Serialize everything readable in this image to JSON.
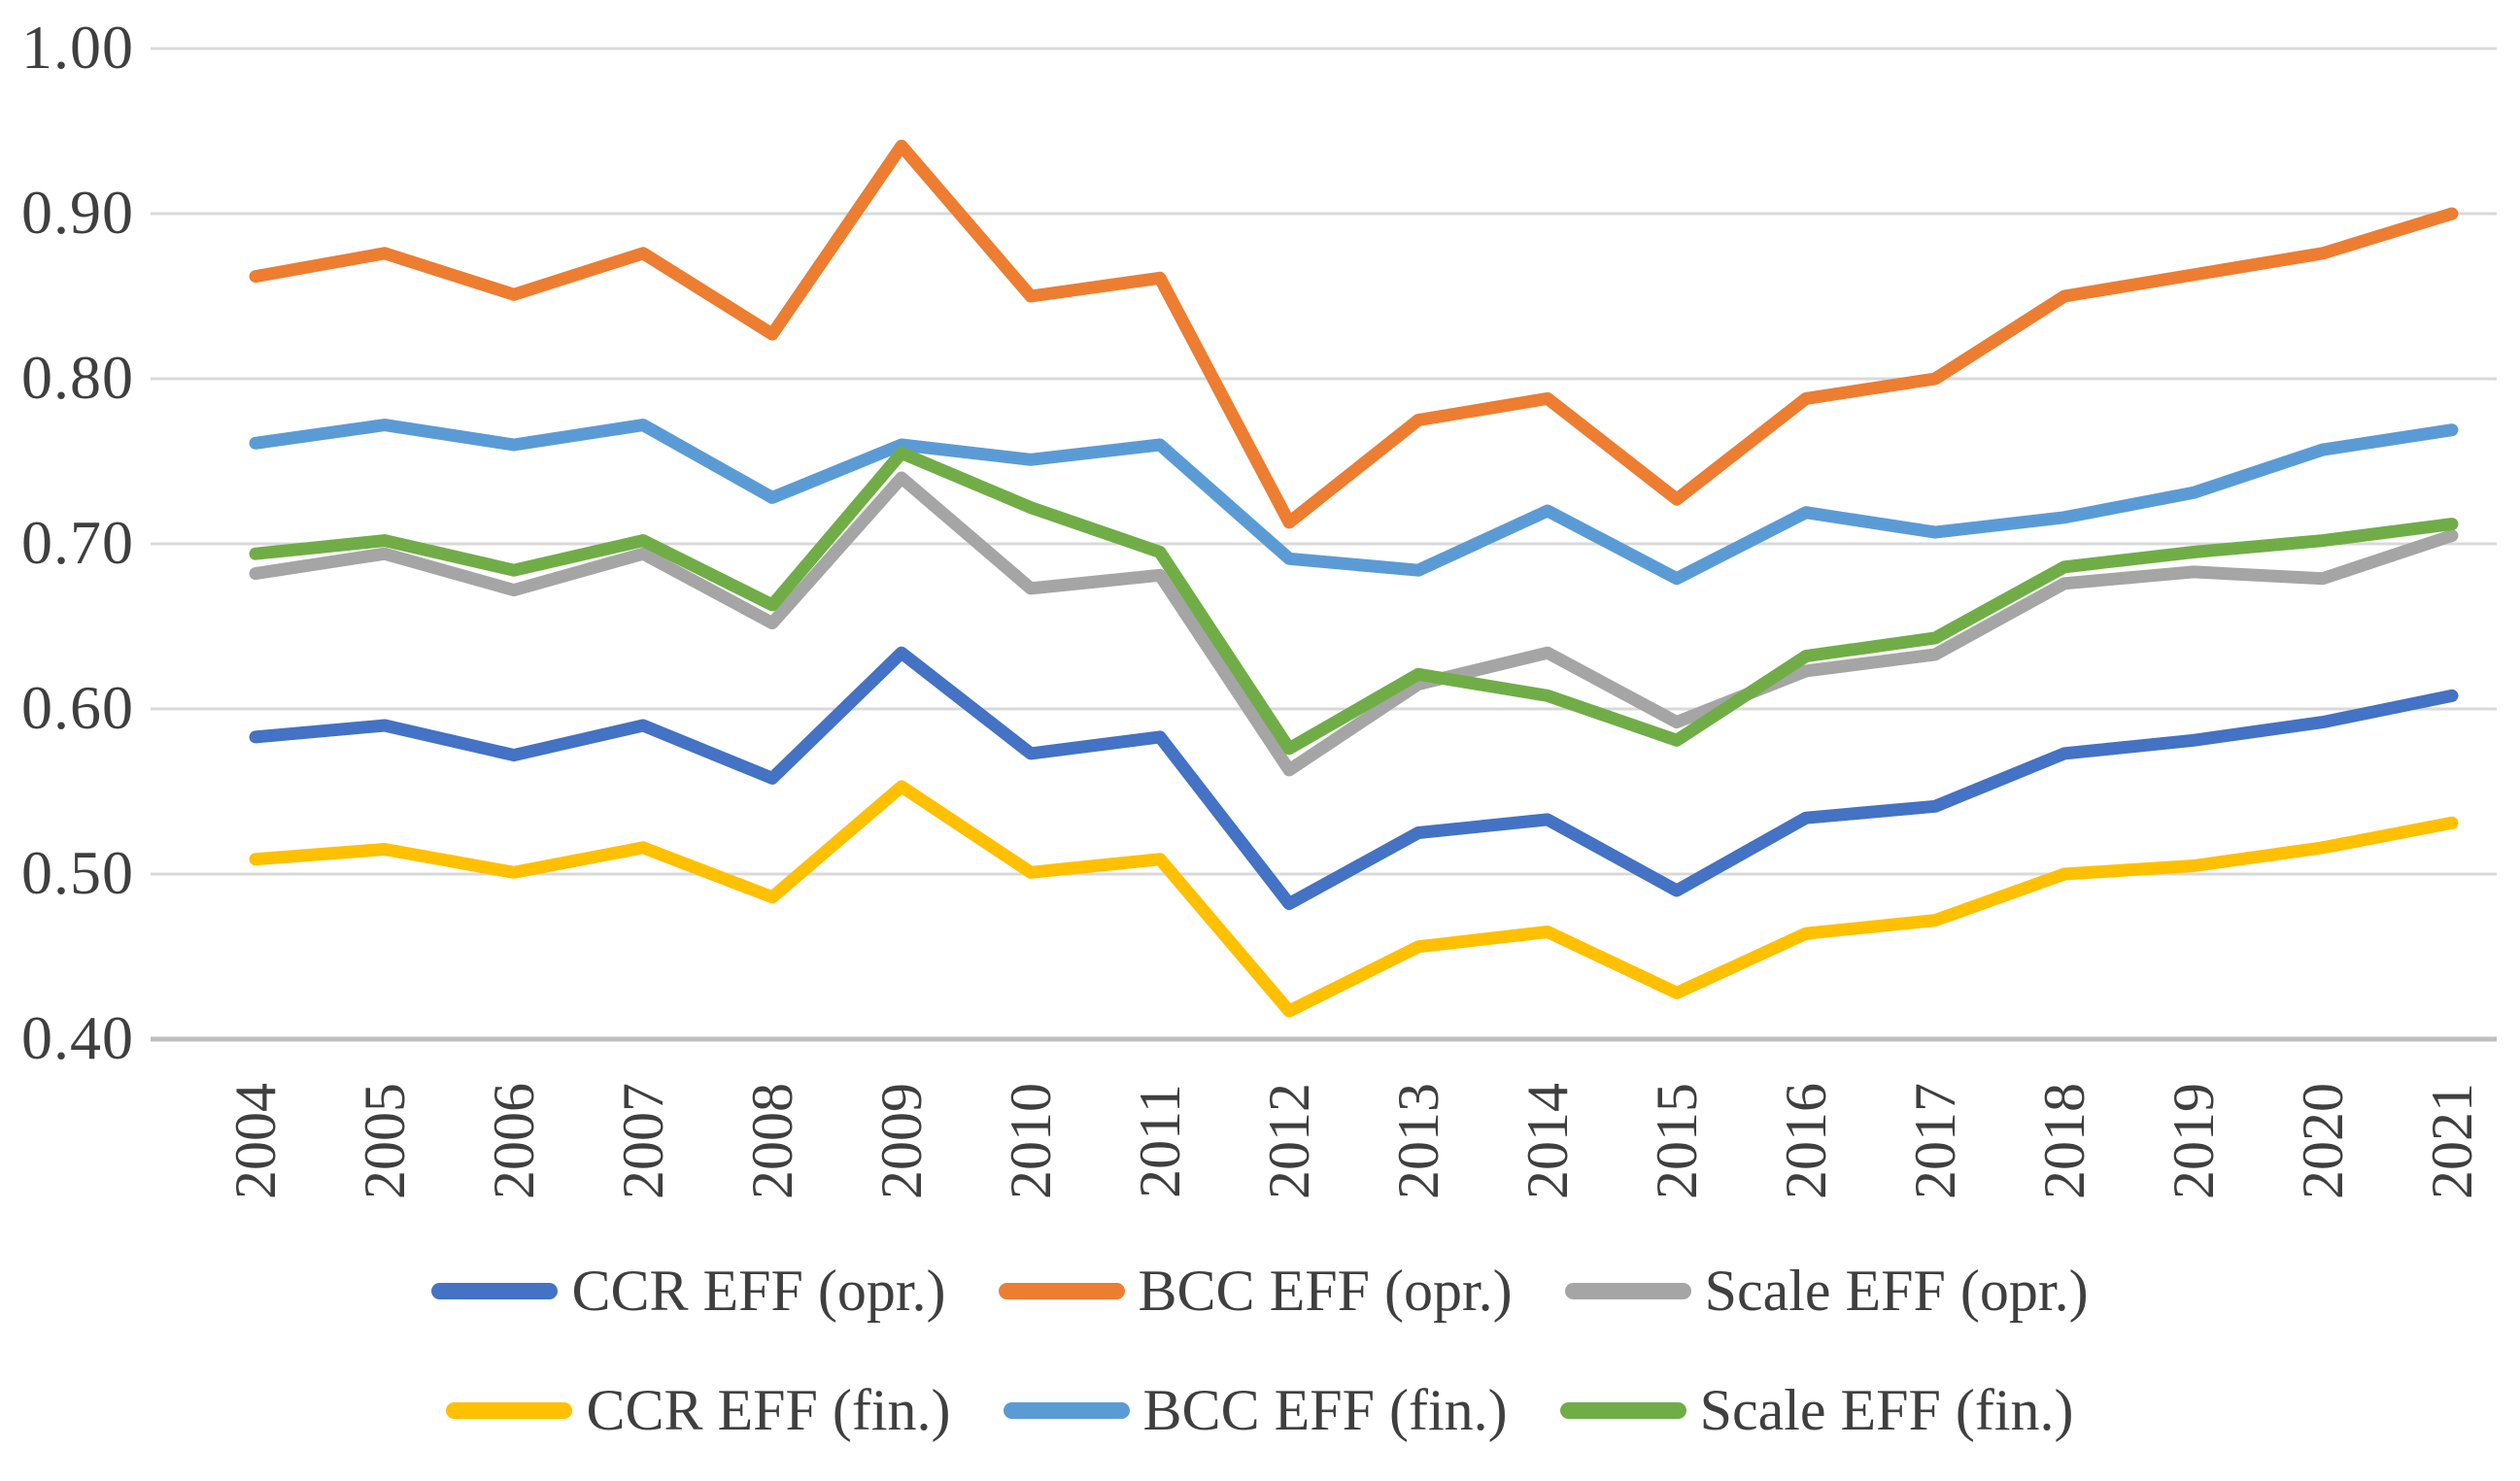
{
  "chart_data": {
    "type": "line",
    "title": "",
    "xlabel": "",
    "ylabel": "",
    "x": [
      2004,
      2005,
      2006,
      2007,
      2008,
      2009,
      2010,
      2011,
      2012,
      2013,
      2014,
      2015,
      2016,
      2017,
      2018,
      2019,
      2020,
      2021
    ],
    "y_ticks": [
      "1.00",
      "0.90",
      "0.80",
      "0.70",
      "0.60",
      "0.50",
      "0.40"
    ],
    "ylim": [
      0.4,
      1.0
    ],
    "grid": true,
    "legend_position": "bottom",
    "series": [
      {
        "name": "CCR EFF (opr.)",
        "color": "#4472C4",
        "values": [
          0.583,
          0.59,
          0.572,
          0.59,
          0.558,
          0.634,
          0.573,
          0.583,
          0.482,
          0.525,
          0.533,
          0.49,
          0.534,
          0.541,
          0.573,
          0.581,
          0.592,
          0.608
        ]
      },
      {
        "name": "BCC EFF (opr.)",
        "color": "#ED7D31",
        "values": [
          0.862,
          0.876,
          0.851,
          0.876,
          0.827,
          0.941,
          0.85,
          0.861,
          0.713,
          0.775,
          0.788,
          0.727,
          0.788,
          0.8,
          0.85,
          0.863,
          0.876,
          0.9
        ]
      },
      {
        "name": "Scale EFF (opr.)",
        "color": "#A5A5A5",
        "values": [
          0.682,
          0.694,
          0.672,
          0.694,
          0.652,
          0.74,
          0.673,
          0.681,
          0.563,
          0.615,
          0.634,
          0.592,
          0.623,
          0.633,
          0.676,
          0.683,
          0.679,
          0.705
        ]
      },
      {
        "name": "CCR EFF (fin.)",
        "color": "#FFC000",
        "values": [
          0.509,
          0.515,
          0.501,
          0.516,
          0.486,
          0.553,
          0.501,
          0.509,
          0.417,
          0.456,
          0.465,
          0.428,
          0.464,
          0.472,
          0.5,
          0.505,
          0.516,
          0.531
        ]
      },
      {
        "name": "BCC EFF (fin.)",
        "color": "#5B9BD5",
        "values": [
          0.761,
          0.772,
          0.76,
          0.772,
          0.728,
          0.76,
          0.751,
          0.76,
          0.691,
          0.684,
          0.72,
          0.679,
          0.719,
          0.707,
          0.716,
          0.731,
          0.757,
          0.769
        ]
      },
      {
        "name": "Scale EFF (fin.)",
        "color": "#70AD47",
        "values": [
          0.694,
          0.702,
          0.684,
          0.702,
          0.663,
          0.755,
          0.722,
          0.695,
          0.576,
          0.621,
          0.608,
          0.581,
          0.632,
          0.643,
          0.686,
          0.695,
          0.702,
          0.712
        ]
      }
    ],
    "colors": {
      "gridline": "#D9D9D9",
      "axis_line": "#BFBFBF",
      "tick_text": "#3f3f3f"
    }
  }
}
